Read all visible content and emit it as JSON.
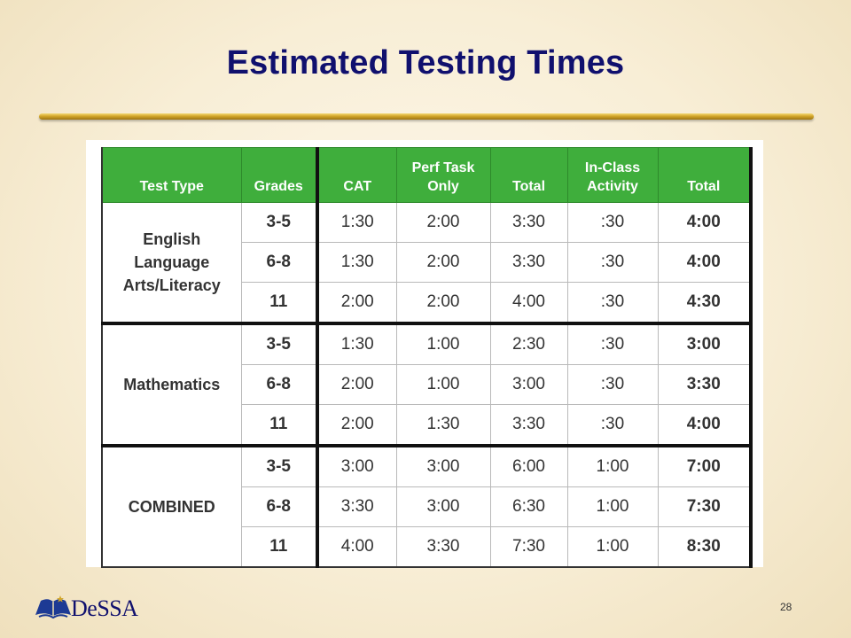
{
  "slide": {
    "title": "Estimated Testing Times",
    "page_number": "28"
  },
  "logo": {
    "text": "DeSSA",
    "icon": "book-icon"
  },
  "table": {
    "headers": [
      "Test Type",
      "Grades",
      "CAT",
      "Perf Task Only",
      "Total",
      "In-Class Activity",
      "Total"
    ],
    "groups": [
      {
        "type": "English Language Arts/Literacy",
        "rows": [
          {
            "grades": "3-5",
            "cat": "1:30",
            "perf_task": "2:00",
            "total": "3:30",
            "in_class": ":30",
            "grand_total": "4:00"
          },
          {
            "grades": "6-8",
            "cat": "1:30",
            "perf_task": "2:00",
            "total": "3:30",
            "in_class": ":30",
            "grand_total": "4:00"
          },
          {
            "grades": "11",
            "cat": "2:00",
            "perf_task": "2:00",
            "total": "4:00",
            "in_class": ":30",
            "grand_total": "4:30"
          }
        ]
      },
      {
        "type": "Mathematics",
        "rows": [
          {
            "grades": "3-5",
            "cat": "1:30",
            "perf_task": "1:00",
            "total": "2:30",
            "in_class": ":30",
            "grand_total": "3:00"
          },
          {
            "grades": "6-8",
            "cat": "2:00",
            "perf_task": "1:00",
            "total": "3:00",
            "in_class": ":30",
            "grand_total": "3:30"
          },
          {
            "grades": "11",
            "cat": "2:00",
            "perf_task": "1:30",
            "total": "3:30",
            "in_class": ":30",
            "grand_total": "4:00"
          }
        ]
      },
      {
        "type": "COMBINED",
        "rows": [
          {
            "grades": "3-5",
            "cat": "3:00",
            "perf_task": "3:00",
            "total": "6:00",
            "in_class": "1:00",
            "grand_total": "7:00"
          },
          {
            "grades": "6-8",
            "cat": "3:30",
            "perf_task": "3:00",
            "total": "6:30",
            "in_class": "1:00",
            "grand_total": "7:30"
          },
          {
            "grades": "11",
            "cat": "4:00",
            "perf_task": "3:30",
            "total": "7:30",
            "in_class": "1:00",
            "grand_total": "8:30"
          }
        ]
      }
    ]
  },
  "colors": {
    "title": "#10106e",
    "header_background": "#3fae3c",
    "header_text": "#ffffff",
    "rule_gold": "#d2a62a"
  }
}
